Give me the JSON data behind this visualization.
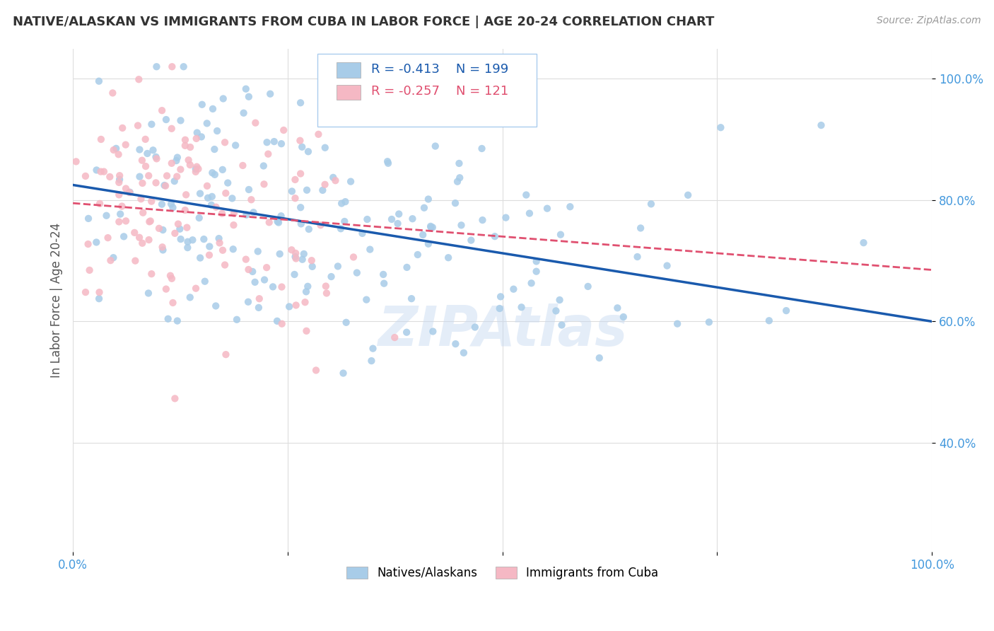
{
  "title": "NATIVE/ALASKAN VS IMMIGRANTS FROM CUBA IN LABOR FORCE | AGE 20-24 CORRELATION CHART",
  "source": "Source: ZipAtlas.com",
  "ylabel": "In Labor Force | Age 20-24",
  "ytick_labels": [
    "40.0%",
    "60.0%",
    "80.0%",
    "100.0%"
  ],
  "ytick_values": [
    0.4,
    0.6,
    0.8,
    1.0
  ],
  "xlim": [
    0.0,
    1.0
  ],
  "ylim": [
    0.22,
    1.05
  ],
  "blue_R": -0.413,
  "blue_N": 199,
  "pink_R": -0.257,
  "pink_N": 121,
  "blue_color": "#a8cce8",
  "pink_color": "#f5b8c4",
  "blue_line_color": "#1a5aad",
  "pink_line_color": "#e05070",
  "blue_line_intercept": 0.825,
  "blue_line_slope": -0.225,
  "pink_line_intercept": 0.795,
  "pink_line_slope": -0.11,
  "legend_label_blue": "Natives/Alaskans",
  "legend_label_pink": "Immigrants from Cuba",
  "watermark": "ZIPAtlas",
  "background_color": "#ffffff",
  "grid_color": "#dddddd",
  "title_color": "#333333",
  "axis_color": "#4499dd",
  "title_fontsize": 13,
  "source_fontsize": 10,
  "tick_fontsize": 12,
  "ylabel_fontsize": 12,
  "scatter_size": 55,
  "scatter_alpha": 0.85
}
